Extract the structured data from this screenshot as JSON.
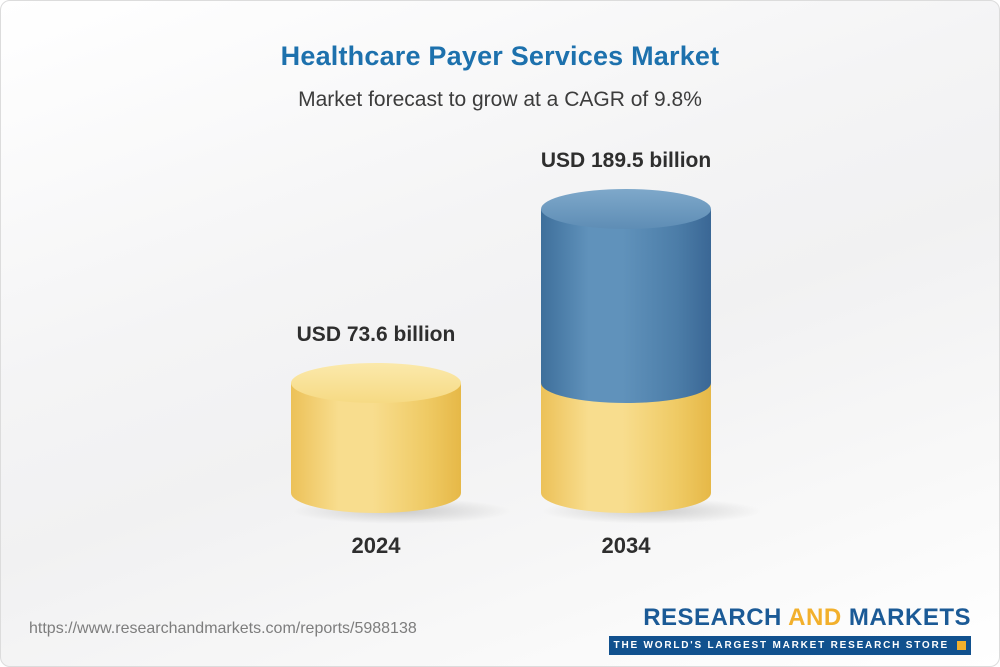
{
  "chart_data": {
    "type": "bar",
    "title": "Healthcare Payer Services Market",
    "subtitle": "Market forecast to grow at a CAGR of 9.8%",
    "categories": [
      "2024",
      "2034"
    ],
    "values": [
      73.6,
      189.5
    ],
    "unit": "USD billion",
    "value_labels": [
      "USD 73.6 billion",
      "USD 189.5 billion"
    ],
    "cagr_percent": 9.8,
    "ylim": [
      0,
      200
    ],
    "legend": "none",
    "grid": "off",
    "colors": {
      "bar_2024": "#f3cf6a",
      "bar_2034_growth_segment": "#4d80ab",
      "bar_2034_base_segment": "#f3cf6a",
      "title_text": "#1d71ad",
      "label_text": "#2e2e2e"
    }
  },
  "header": {
    "title": "Healthcare Payer Services Market",
    "subtitle": "Market forecast to grow at a CAGR of 9.8%"
  },
  "bars": [
    {
      "label": "USD 73.6 billion",
      "year": "2024"
    },
    {
      "label": "USD 189.5 billion",
      "year": "2034"
    }
  ],
  "footer": {
    "url": "https://www.researchandmarkets.com/reports/5988138",
    "logo": {
      "part1": "RESEARCH",
      "part2": "AND",
      "part3": "MARKETS",
      "tagline": "THE WORLD'S LARGEST MARKET RESEARCH STORE",
      "brand_blue": "#1b5a96",
      "brand_yellow": "#f2b02c"
    }
  }
}
